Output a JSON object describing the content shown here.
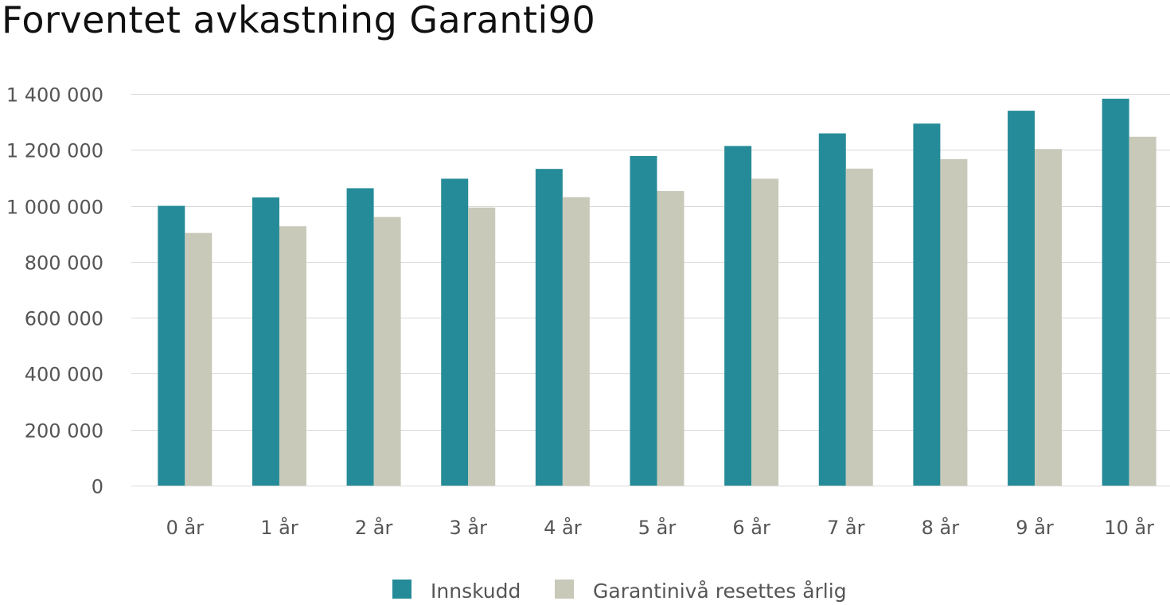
{
  "chart_data": {
    "type": "bar",
    "title": "Forventet avkastning Garanti90",
    "categories": [
      "0 år",
      "1 år",
      "2 år",
      "3 år",
      "4 år",
      "5 år",
      "6 år",
      "7 år",
      "8 år",
      "9 år",
      "10 år"
    ],
    "series": [
      {
        "name": "Innskudd",
        "color": "#268b98",
        "values": [
          1000000,
          1030000,
          1063000,
          1097000,
          1132000,
          1178000,
          1214000,
          1259000,
          1294000,
          1340000,
          1383000
        ]
      },
      {
        "name": "Garantinivå resettes årlig",
        "color": "#c8c9b9",
        "values": [
          903000,
          927000,
          960000,
          994000,
          1031000,
          1053000,
          1097000,
          1133000,
          1167000,
          1203000,
          1247000
        ]
      }
    ],
    "ylim": [
      0,
      1400000
    ],
    "yticks": [
      0,
      200000,
      400000,
      600000,
      800000,
      1000000,
      1200000,
      1400000
    ],
    "ytick_labels": [
      "0",
      "200 000",
      "400 000",
      "600 000",
      "800 000",
      "1 000 000",
      "1 200 000",
      "1 400 000"
    ],
    "grid": true,
    "legend_position": "bottom"
  }
}
